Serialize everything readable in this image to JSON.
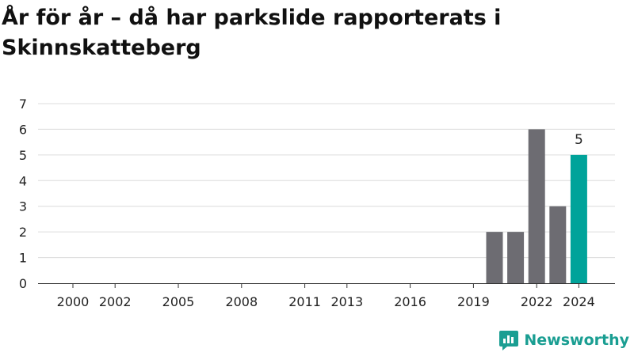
{
  "title": "År för år – då har parkslide rapporterats i Skinnskatteberg",
  "brand": "Newsworthy",
  "colors": {
    "bar": "#6d6c72",
    "highlight": "#00a39a",
    "grid": "#dcdcdc",
    "axis": "#333333",
    "brand": "#1a9e92"
  },
  "chart_data": {
    "type": "bar",
    "x": [
      2000,
      2001,
      2002,
      2003,
      2004,
      2005,
      2006,
      2007,
      2008,
      2009,
      2010,
      2011,
      2012,
      2013,
      2014,
      2015,
      2016,
      2017,
      2018,
      2019,
      2020,
      2021,
      2022,
      2023,
      2024
    ],
    "values": [
      0,
      0,
      0,
      0,
      0,
      0,
      0,
      0,
      0,
      0,
      0,
      0,
      0,
      0,
      0,
      0,
      0,
      0,
      0,
      0,
      2,
      2,
      6,
      3,
      5
    ],
    "x_tick_labels": [
      "2000",
      "2002",
      "2005",
      "2008",
      "2011",
      "2013",
      "2016",
      "2019",
      "2022",
      "2024"
    ],
    "y_ticks": [
      0,
      1,
      2,
      3,
      4,
      5,
      6,
      7
    ],
    "ylim": [
      0,
      7
    ],
    "highlight": {
      "x": 2024,
      "label": "5"
    },
    "grid": true,
    "xlabel": "",
    "ylabel": ""
  }
}
